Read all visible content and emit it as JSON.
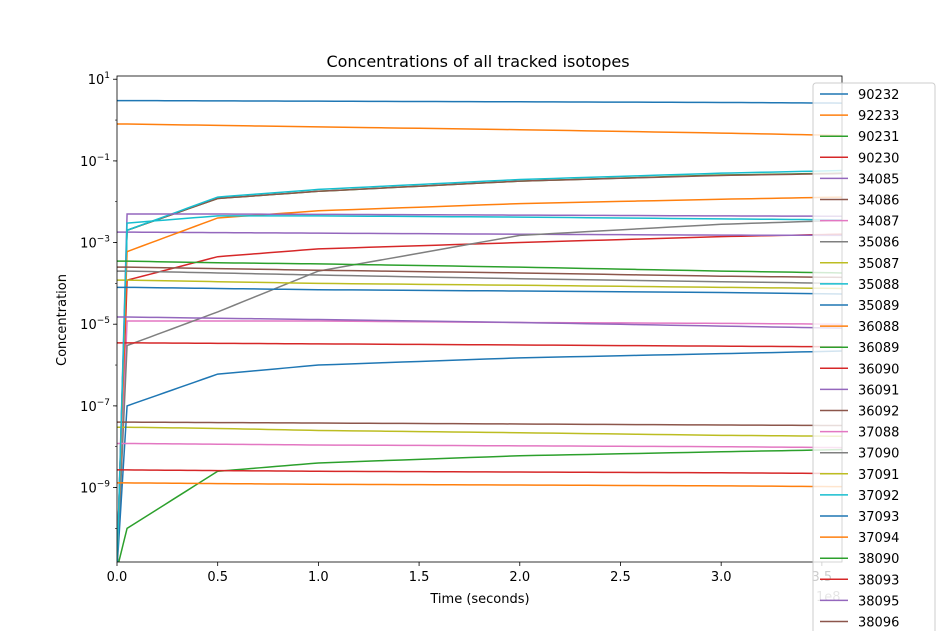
{
  "chart_data": {
    "type": "line",
    "title": "Concentrations of all tracked isotopes",
    "xlabel": "Time (seconds)",
    "ylabel": "Concentration",
    "x_offset_label": "1e8",
    "xlim": [
      0,
      360000000.0
    ],
    "ylim": [
      1.5e-11,
      12
    ],
    "yscale": "log",
    "grid": false,
    "legend_position": "right",
    "x_ticks": [
      "0.0",
      "0.5",
      "1.0",
      "1.5",
      "2.0",
      "2.5",
      "3.0",
      "3.5"
    ],
    "y_ticks": [
      {
        "base": "10",
        "exp": "1"
      },
      {
        "base": "10",
        "exp": "−1"
      },
      {
        "base": "10",
        "exp": "−3"
      },
      {
        "base": "10",
        "exp": "−5"
      },
      {
        "base": "10",
        "exp": "−7"
      },
      {
        "base": "10",
        "exp": "−9"
      }
    ],
    "x": [
      0,
      5000000.0,
      50000000.0,
      100000000.0,
      200000000.0,
      300000000.0,
      360000000.0
    ],
    "series": [
      {
        "name": "90232",
        "color": "#1f77b4",
        "values": [
          3.0,
          3.0,
          2.95,
          2.9,
          2.8,
          2.7,
          2.6
        ]
      },
      {
        "name": "92233",
        "color": "#ff7f0e",
        "values": [
          0.8,
          0.8,
          0.74,
          0.68,
          0.58,
          0.48,
          0.42
        ]
      },
      {
        "name": "90231",
        "color": "#2ca02c",
        "values": [
          1e-11,
          0.002,
          0.012,
          0.018,
          0.032,
          0.045,
          0.05
        ]
      },
      {
        "name": "90230",
        "color": "#d62728",
        "values": [
          1e-11,
          0.00012,
          0.00045,
          0.0007,
          0.001,
          0.0014,
          0.0016
        ]
      },
      {
        "name": "34085",
        "color": "#9467bd",
        "values": [
          0.0018,
          0.0018,
          0.00175,
          0.0017,
          0.0016,
          0.00152,
          0.0015
        ]
      },
      {
        "name": "34086",
        "color": "#8c564b",
        "values": [
          1e-11,
          0.002,
          0.012,
          0.018,
          0.032,
          0.044,
          0.049
        ]
      },
      {
        "name": "34087",
        "color": "#e377c2",
        "values": [
          1e-11,
          1.2e-05,
          1.2e-05,
          1.2e-05,
          1.1e-05,
          1.05e-05,
          1e-05
        ]
      },
      {
        "name": "35086",
        "color": "#7f7f7f",
        "values": [
          1e-11,
          3e-06,
          2e-05,
          0.0002,
          0.0015,
          0.0028,
          0.0035
        ]
      },
      {
        "name": "35087",
        "color": "#bcbd22",
        "values": [
          3e-08,
          3e-08,
          2.8e-08,
          2.5e-08,
          2.2e-08,
          1.9e-08,
          1.8e-08
        ]
      },
      {
        "name": "35088",
        "color": "#17becf",
        "values": [
          1e-11,
          0.002,
          0.013,
          0.02,
          0.035,
          0.05,
          0.058
        ]
      },
      {
        "name": "35089",
        "color": "#1f77b4",
        "values": [
          1e-11,
          1e-07,
          6e-07,
          1e-06,
          1.5e-06,
          1.9e-06,
          2.2e-06
        ]
      },
      {
        "name": "36088",
        "color": "#ff7f0e",
        "values": [
          1e-11,
          0.0006,
          0.004,
          0.006,
          0.009,
          0.0115,
          0.013
        ]
      },
      {
        "name": "36089",
        "color": "#2ca02c",
        "values": [
          1e-11,
          1e-10,
          2.5e-09,
          4e-09,
          6e-09,
          7.5e-09,
          8.5e-09
        ]
      },
      {
        "name": "36090",
        "color": "#d62728",
        "values": [
          3.5e-06,
          3.5e-06,
          3.4e-06,
          3.3e-06,
          3.1e-06,
          2.9e-06,
          2.8e-06
        ]
      },
      {
        "name": "36091",
        "color": "#9467bd",
        "values": [
          1e-11,
          0.005,
          0.005,
          0.0049,
          0.0047,
          0.0045,
          0.0044
        ]
      },
      {
        "name": "36092",
        "color": "#8c564b",
        "values": [
          4e-08,
          4e-08,
          3.9e-08,
          3.8e-08,
          3.6e-08,
          3.4e-08,
          3.3e-08
        ]
      },
      {
        "name": "37088",
        "color": "#e377c2",
        "values": [
          1.2e-08,
          1.2e-08,
          1.15e-08,
          1.1e-08,
          1.05e-08,
          1e-08,
          9.5e-09
        ]
      },
      {
        "name": "37090",
        "color": "#7f7f7f",
        "values": [
          0.0002,
          0.0002,
          0.00018,
          0.00016,
          0.00013,
          0.00011,
          0.0001
        ]
      },
      {
        "name": "37091",
        "color": "#bcbd22",
        "values": [
          0.00012,
          0.00012,
          0.00011,
          0.0001,
          9e-05,
          8e-05,
          7.5e-05
        ]
      },
      {
        "name": "37092",
        "color": "#17becf",
        "values": [
          1e-11,
          0.003,
          0.0045,
          0.0045,
          0.0042,
          0.0038,
          0.0036
        ]
      },
      {
        "name": "37093",
        "color": "#1f77b4",
        "values": [
          8e-05,
          8e-05,
          7.5e-05,
          7e-05,
          6.5e-05,
          6e-05,
          5.5e-05
        ]
      },
      {
        "name": "37094",
        "color": "#ff7f0e",
        "values": [
          1.3e-09,
          1.3e-09,
          1.25e-09,
          1.2e-09,
          1.15e-09,
          1.1e-09,
          1.05e-09
        ]
      },
      {
        "name": "38090",
        "color": "#2ca02c",
        "values": [
          0.00035,
          0.00035,
          0.00032,
          0.0003,
          0.00025,
          0.0002,
          0.00018
        ]
      },
      {
        "name": "38093",
        "color": "#d62728",
        "values": [
          2.7e-09,
          2.7e-09,
          2.6e-09,
          2.5e-09,
          2.4e-09,
          2.3e-09,
          2.2e-09
        ]
      },
      {
        "name": "38095",
        "color": "#9467bd",
        "values": [
          1.5e-05,
          1.5e-05,
          1.4e-05,
          1.3e-05,
          1.1e-05,
          9e-06,
          8e-06
        ]
      },
      {
        "name": "38096",
        "color": "#8c564b",
        "values": [
          0.00025,
          0.00025,
          0.00023,
          0.00021,
          0.00018,
          0.00015,
          0.00014
        ]
      }
    ]
  }
}
